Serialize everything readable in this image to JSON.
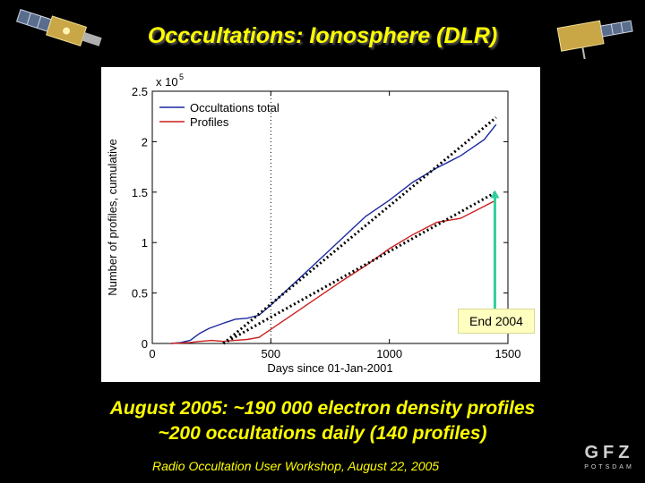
{
  "slide": {
    "title": "Occcultations: Ionosphere (DLR)",
    "caption_line1": "August 2005: ~190 000 electron density profiles",
    "caption_line2": "~200 occultations daily (140 profiles)",
    "footer": "Radio Occultation User Workshop, August 22, 2005",
    "logo_main": "GFZ",
    "logo_sub": "POTSDAM"
  },
  "colors": {
    "title": "#ffff00",
    "occultations": "#1a2aa0",
    "profiles": "#cc1f1f",
    "arrow": "#2fcf9f"
  },
  "chart_data": {
    "type": "line",
    "title": "",
    "xlabel": "Days since 01-Jan-2001",
    "ylabel": "Number of profiles, cumulative",
    "y_multiplier_label": "x 10",
    "y_multiplier_exp": "5",
    "xlim": [
      0,
      1500
    ],
    "ylim": [
      0,
      2.5
    ],
    "xticks": [
      0,
      500,
      1000,
      1500
    ],
    "xtick_labels": [
      "0",
      "500",
      "1000",
      "1500"
    ],
    "yticks": [
      0,
      0.5,
      1,
      1.5,
      2,
      2.5
    ],
    "ytick_labels": [
      "0",
      "0.5",
      "1",
      "1.5",
      "2",
      "2.5"
    ],
    "legend_position": "top-left",
    "series": [
      {
        "name": "Occultations total",
        "color": "#1a2aa0",
        "style": "solid",
        "x": [
          80,
          120,
          160,
          200,
          240,
          300,
          350,
          400,
          450,
          500,
          600,
          700,
          800,
          900,
          1000,
          1100,
          1200,
          1300,
          1400,
          1450
        ],
        "y": [
          0.0,
          0.01,
          0.03,
          0.1,
          0.15,
          0.2,
          0.24,
          0.25,
          0.28,
          0.38,
          0.6,
          0.82,
          1.04,
          1.26,
          1.42,
          1.6,
          1.74,
          1.86,
          2.02,
          2.17
        ]
      },
      {
        "name": "Profiles",
        "color": "#cc1f1f",
        "style": "solid",
        "x": [
          80,
          120,
          160,
          200,
          250,
          300,
          350,
          400,
          450,
          500,
          600,
          700,
          800,
          900,
          1000,
          1100,
          1200,
          1300,
          1400,
          1450
        ],
        "y": [
          0.0,
          0.005,
          0.01,
          0.02,
          0.03,
          0.02,
          0.03,
          0.04,
          0.06,
          0.14,
          0.3,
          0.46,
          0.62,
          0.77,
          0.94,
          1.08,
          1.2,
          1.24,
          1.36,
          1.42
        ]
      },
      {
        "name": "Trend occultations",
        "color": "#000000",
        "style": "dotted",
        "x": [
          300,
          1450
        ],
        "y": [
          0.0,
          2.24
        ]
      },
      {
        "name": "Trend profiles",
        "color": "#000000",
        "style": "dotted",
        "x": [
          300,
          1450
        ],
        "y": [
          0.0,
          1.5
        ]
      }
    ],
    "vline_x": 500,
    "annotation": {
      "text": "End 2004",
      "arrow_x": 1445,
      "arrow_from_y": 0.25,
      "arrow_to_y": 1.52
    }
  }
}
